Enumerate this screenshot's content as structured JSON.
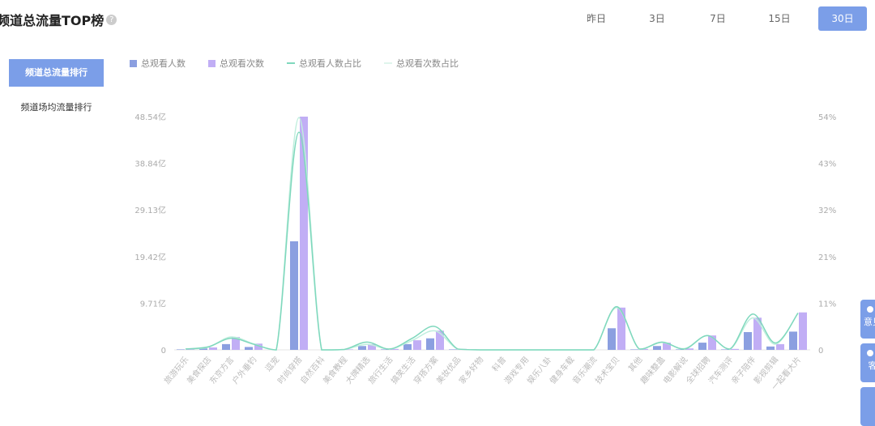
{
  "header": {
    "title": "频道总流量TOP榜",
    "help_icon": "question-circle-icon"
  },
  "ranges": [
    {
      "label": "昨日",
      "active": false
    },
    {
      "label": "3日",
      "active": false
    },
    {
      "label": "7日",
      "active": false
    },
    {
      "label": "15日",
      "active": false
    },
    {
      "label": "30日",
      "active": true
    }
  ],
  "tabs": [
    {
      "label": "频道总流量排行",
      "active": true
    },
    {
      "label": "频道场均流量排行",
      "active": false
    }
  ],
  "float_buttons": [
    {
      "label": "意见",
      "icon": "feedback-icon"
    },
    {
      "label": "客",
      "icon": "service-icon"
    }
  ],
  "colors": {
    "accent": "#7b9ee8",
    "bar_viewers": "#8b9fe0",
    "bar_views": "#c1aef5",
    "line_viewers": "#7fd8bd",
    "line_views": "#bfeedd"
  },
  "chart_data": {
    "type": "bar",
    "legend": [
      "总观看人数",
      "总观看次数",
      "总观看人数占比",
      "总观看次数占比"
    ],
    "legend_position": "top-left",
    "categories": [
      "旅游玩乐",
      "美食探店",
      "东京方言",
      "户外垂钓",
      "逗宠",
      "时尚穿搭",
      "自然百科",
      "美食教程",
      "大牌精选",
      "旅行生活",
      "搞笑生活",
      "穿搭方案",
      "美妆优品",
      "家乡好物",
      "科普",
      "游戏专用",
      "娱乐八卦",
      "健身车载",
      "音乐潮流",
      "技术宝贝",
      "其他",
      "趣味整蛊",
      "电影解说",
      "全球招聘",
      "汽车测评",
      "亲子陪伴",
      "影视剪辑",
      "一起看大片"
    ],
    "y_left": {
      "unit": "亿",
      "ticks": [
        "0",
        "9.71亿",
        "19.42亿",
        "29.13亿",
        "38.84亿",
        "48.54亿"
      ],
      "range": [
        0,
        48.54
      ]
    },
    "y_right": {
      "unit": "%",
      "ticks": [
        "0",
        "11%",
        "21%",
        "32%",
        "43%",
        "54%"
      ],
      "range": [
        0,
        54
      ]
    },
    "series": [
      {
        "name": "总观看人数",
        "type": "bar",
        "values": [
          0.1,
          0.3,
          1.2,
          0.6,
          0,
          22.6,
          0,
          0.05,
          0.8,
          0.1,
          1.2,
          2.4,
          0.1,
          0,
          0,
          0,
          0,
          0,
          0,
          4.5,
          0.1,
          0.8,
          0.1,
          1.5,
          0.1,
          3.7,
          0.7,
          3.8
        ]
      },
      {
        "name": "总观看次数",
        "type": "bar",
        "values": [
          0.2,
          0.5,
          2.7,
          1.3,
          0,
          48.54,
          0,
          0.1,
          1.2,
          0.2,
          2.0,
          4.0,
          0.2,
          0,
          0,
          0,
          0,
          0,
          0,
          8.8,
          0.2,
          1.5,
          0.3,
          3.0,
          0.2,
          6.7,
          1.2,
          7.8
        ]
      },
      {
        "name": "总观看人数占比",
        "type": "line",
        "axis": "right",
        "values": [
          0.2,
          0.7,
          2.7,
          1.3,
          0,
          50.4,
          0,
          0.1,
          1.8,
          0.2,
          2.7,
          5.4,
          0.2,
          0,
          0,
          0,
          0,
          0,
          0,
          10.0,
          0.2,
          1.8,
          0.2,
          3.3,
          0.2,
          8.3,
          1.6,
          8.5
        ]
      },
      {
        "name": "总观看次数占比",
        "type": "line",
        "axis": "right",
        "values": [
          0.2,
          0.6,
          3.0,
          1.4,
          0,
          53.8,
          0,
          0.1,
          1.3,
          0.2,
          2.2,
          4.4,
          0.2,
          0,
          0,
          0,
          0,
          0,
          0,
          9.8,
          0.2,
          1.7,
          0.3,
          3.3,
          0.2,
          7.4,
          1.3,
          8.6
        ]
      }
    ],
    "grid": false
  }
}
